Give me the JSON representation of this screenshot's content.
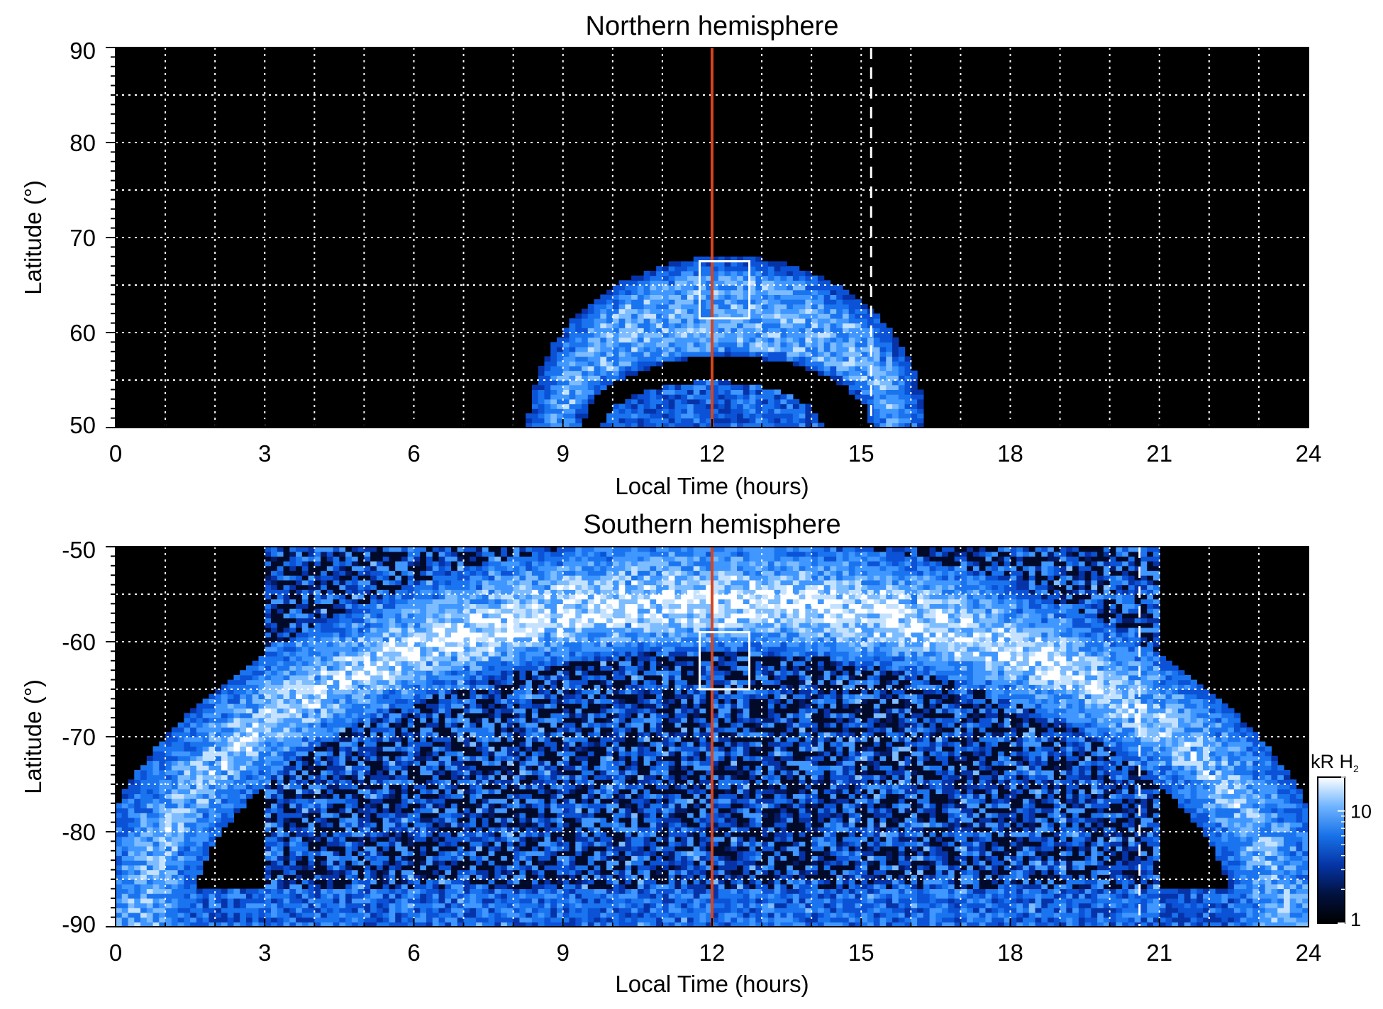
{
  "chart_data": [
    {
      "type": "heatmap",
      "title": "Northern hemisphere",
      "xlabel": "Local Time (hours)",
      "ylabel": "Latitude (°)",
      "xlim": [
        0,
        24
      ],
      "ylim": [
        50,
        90
      ],
      "xticks": [
        0,
        3,
        6,
        9,
        12,
        15,
        18,
        21,
        24
      ],
      "yticks": [
        50,
        60,
        70,
        80,
        90
      ],
      "xtick_labels": [
        "0",
        "3",
        "6",
        "9",
        "12",
        "15",
        "18",
        "21",
        "24"
      ],
      "ytick_labels": [
        "50",
        "60",
        "70",
        "80",
        "90"
      ],
      "grid": true,
      "grid_x_step": 1,
      "grid_y_step": 5,
      "colorscale": "black-blue-white, logarithmic",
      "background_color": "#000000",
      "emission_features": [
        {
          "feature": "main auroral arc",
          "center_x": 12.3,
          "center_y": 50,
          "outer_radius_hours": 4.0,
          "outer_radius_deg": 18,
          "inner_radius_hours": 2.9,
          "inner_radius_deg": 7.5,
          "intensity_kR": 10
        },
        {
          "feature": "inner patch",
          "center_x": 12.0,
          "center_y": 50,
          "outer_radius_hours": 2.2,
          "outer_radius_deg": 4.8,
          "intensity_kR": 3
        }
      ],
      "reference_lines": [
        {
          "x": 12.0,
          "style": "solid",
          "color": "#d9441a"
        },
        {
          "x": 15.2,
          "style": "dashed",
          "color": "#ffffff"
        }
      ],
      "boxes": [
        {
          "x0": 11.75,
          "x1": 12.75,
          "y0": 61.5,
          "y1": 67.5,
          "color": "#ffffff"
        }
      ]
    },
    {
      "type": "heatmap",
      "title": "Southern hemisphere",
      "xlabel": "Local Time (hours)",
      "ylabel": "Latitude (°)",
      "xlim": [
        0,
        24
      ],
      "ylim": [
        -90,
        -50
      ],
      "xticks": [
        0,
        3,
        6,
        9,
        12,
        15,
        18,
        21,
        24
      ],
      "yticks": [
        -90,
        -80,
        -70,
        -60,
        -50
      ],
      "xtick_labels": [
        "0",
        "3",
        "6",
        "9",
        "12",
        "15",
        "18",
        "21",
        "24"
      ],
      "ytick_labels": [
        "-90",
        "-80",
        "-70",
        "-60",
        "-50"
      ],
      "grid": true,
      "grid_x_step": 1,
      "grid_y_step": 5,
      "colorscale": "black-blue-white, logarithmic",
      "background_color": "#000000",
      "emission_features": [
        {
          "feature": "main auroral oval",
          "center_x": 12.0,
          "center_y": -90,
          "outer_radius_hours": 12.6,
          "outer_radius_deg": 41,
          "inner_radius_hours": 10.5,
          "inner_radius_deg": 29,
          "intensity_kR": 20
        },
        {
          "feature": "polar emission",
          "region_x": [
            3,
            21
          ],
          "region_y": [
            -90,
            -50
          ],
          "intensity_kR": 3
        }
      ],
      "reference_lines": [
        {
          "x": 12.0,
          "style": "solid",
          "color": "#d9441a"
        },
        {
          "x": 20.6,
          "style": "dashed",
          "color": "#ffffff"
        }
      ],
      "boxes": [
        {
          "x0": 11.75,
          "x1": 12.75,
          "y0": -65,
          "y1": -59,
          "color": "#ffffff"
        }
      ]
    }
  ],
  "colorbar": {
    "unit_label": "kR H",
    "unit_subscript": "2",
    "scale": "log",
    "range": [
      1,
      20
    ],
    "ticks": [
      1,
      10
    ],
    "tick_labels": [
      "1",
      "10"
    ],
    "colors": [
      "#000000",
      "#02123f",
      "#0535a6",
      "#1872e8",
      "#6fb4ff",
      "#ffffff"
    ]
  },
  "colors": {
    "noon_line": "#d9441a",
    "dashed_line": "#ffffff",
    "box": "#ffffff",
    "grid": "#ffffff",
    "plot_background": "#000000"
  }
}
